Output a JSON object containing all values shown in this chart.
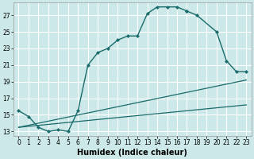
{
  "xlabel": "Humidex (Indice chaleur)",
  "bg_color": "#cce8e8",
  "line_color": "#1a6b6b",
  "grid_color": "#ffffff",
  "xlim": [
    -0.5,
    23.5
  ],
  "ylim": [
    12.5,
    28.5
  ],
  "yticks": [
    13,
    15,
    17,
    19,
    21,
    23,
    25,
    27
  ],
  "xticks": [
    0,
    1,
    2,
    3,
    4,
    5,
    6,
    7,
    8,
    9,
    10,
    11,
    12,
    13,
    14,
    15,
    16,
    17,
    18,
    19,
    20,
    21,
    22,
    23
  ],
  "s1x": [
    0,
    1,
    2,
    3,
    4,
    5,
    6,
    7,
    8,
    9,
    10,
    11,
    12,
    13,
    14,
    15,
    16,
    17
  ],
  "s1y": [
    15.5,
    14.8,
    13.5,
    13.0,
    13.2,
    13.0,
    15.5,
    21.0,
    22.5,
    23.0,
    24.0,
    24.5,
    24.5,
    27.2,
    28.0,
    28.0,
    28.0,
    27.5
  ],
  "s2x": [
    17,
    18,
    20,
    21,
    22,
    23
  ],
  "s2y": [
    27.5,
    27.0,
    25.0,
    21.5,
    20.2,
    20.2
  ],
  "s3x": [
    0,
    23
  ],
  "s3y": [
    13.5,
    19.2
  ],
  "s4x": [
    0,
    23
  ],
  "s4y": [
    13.5,
    16.2
  ],
  "xlabel_fontsize": 7,
  "tick_fontsize": 5.5
}
